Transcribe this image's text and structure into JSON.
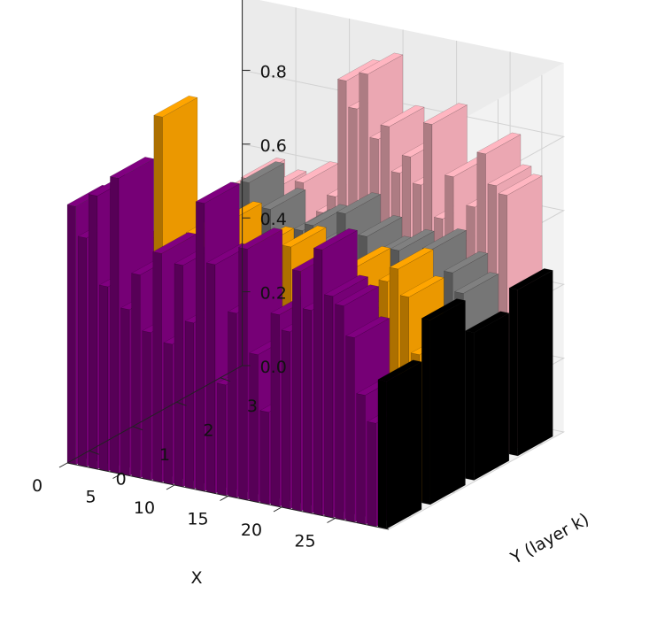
{
  "chart_data": {
    "type": "bar3d",
    "xlabel": "X",
    "ylabel": "Y (layer k)",
    "zlabel": "",
    "x_ticks": [
      "0",
      "5",
      "10",
      "15",
      "20",
      "25"
    ],
    "y_ticks": [
      "0",
      "1",
      "2",
      "3"
    ],
    "z_ticks": [
      "0.0",
      "0.2",
      "0.4",
      "0.6",
      "0.8"
    ],
    "xlim": [
      0,
      30
    ],
    "ylim": [
      0,
      4
    ],
    "zlim": [
      0,
      1.0
    ],
    "grid": true,
    "colors": [
      "#800080",
      "#ffa500",
      "#808080",
      "#ffb6c1"
    ],
    "last_bar_color": "#000000",
    "series": [
      {
        "layer": 0,
        "values": [
          0.7,
          0.62,
          0.74,
          0.5,
          0.8,
          0.45,
          0.55,
          0.4,
          0.62,
          0.38,
          0.6,
          0.45,
          0.78,
          0.62,
          0.3,
          0.5,
          0.68,
          0.4,
          0.25,
          0.52,
          0.48,
          0.65,
          0.55,
          0.72,
          0.6,
          0.58,
          0.5,
          0.35,
          0.28,
          0.4
        ]
      },
      {
        "layer": 1,
        "values": [
          0.3,
          0.52,
          0.45,
          0.38,
          0.9,
          0.4,
          0.55,
          0.6,
          0.48,
          0.55,
          0.65,
          0.45,
          0.42,
          0.6,
          0.5,
          0.45,
          0.62,
          0.55,
          0.4,
          0.48,
          0.55,
          0.52,
          0.6,
          0.45,
          0.5,
          0.58,
          0.62,
          0.55,
          0.4,
          0.5
        ]
      },
      {
        "layer": 2,
        "values": [
          0.4,
          0.5,
          0.45,
          0.55,
          0.6,
          0.5,
          0.48,
          0.52,
          0.68,
          0.55,
          0.62,
          0.45,
          0.5,
          0.58,
          0.6,
          0.55,
          0.52,
          0.65,
          0.5,
          0.6,
          0.55,
          0.5,
          0.58,
          0.52,
          0.55,
          0.6,
          0.45,
          0.55,
          0.5,
          0.4
        ]
      },
      {
        "layer": 3,
        "values": [
          0.5,
          0.45,
          0.55,
          0.48,
          0.6,
          0.52,
          0.58,
          0.5,
          0.55,
          0.62,
          0.48,
          0.55,
          0.6,
          0.92,
          0.85,
          0.95,
          0.78,
          0.82,
          0.7,
          0.75,
          0.68,
          0.85,
          0.6,
          0.72,
          0.55,
          0.65,
          0.8,
          0.72,
          0.7,
          0.45
        ]
      }
    ]
  }
}
